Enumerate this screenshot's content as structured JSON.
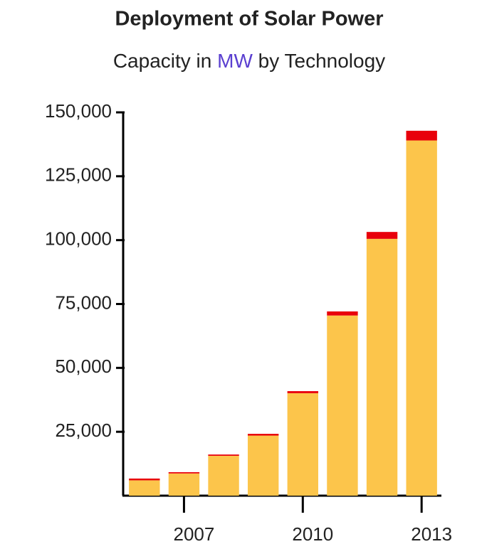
{
  "chart_data": {
    "type": "bar",
    "stacked": true,
    "title": "Deployment of Solar Power",
    "subtitle": [
      "Capacity in",
      "MW",
      "by Technology"
    ],
    "categories": [
      null,
      "2007",
      null,
      null,
      "2010",
      null,
      null,
      "2013"
    ],
    "series": [
      {
        "color": "#fcc54b",
        "values": [
          6000,
          8700,
          15600,
          23500,
          40100,
          70500,
          100500,
          139000
        ]
      },
      {
        "color": "#e8000b",
        "values": [
          700,
          500,
          500,
          700,
          800,
          1600,
          2700,
          3800
        ]
      }
    ],
    "ylim": [
      0,
      150000
    ],
    "yticks": [
      {
        "value": 25000,
        "label": "25,000"
      },
      {
        "value": 50000,
        "label": "50,000"
      },
      {
        "value": 75000,
        "label": "75,000"
      },
      {
        "value": 100000,
        "label": "100,000"
      },
      {
        "value": 125000,
        "label": "125,000"
      },
      {
        "value": 150000,
        "label": "150,000"
      }
    ],
    "grid": false
  }
}
